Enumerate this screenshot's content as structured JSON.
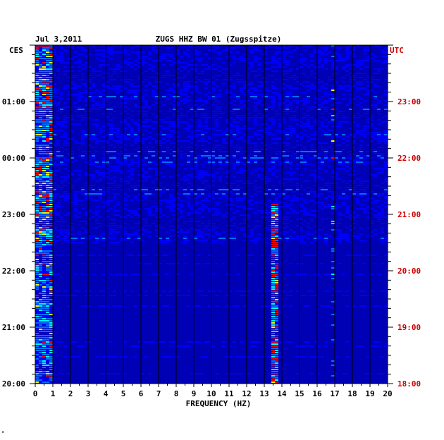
{
  "header": {
    "date": "Jul 3,2011",
    "station": "ZUGS HHZ BW 01 (Zugsspitze)"
  },
  "chart_data": {
    "type": "heatmap",
    "title": "ZUGS HHZ BW 01 (Zugsspitze)",
    "date": "Jul 3,2011",
    "xlabel": "FREQUENCY (HZ)",
    "xlim": [
      0,
      20
    ],
    "x_ticks": [
      "0",
      "1",
      "2",
      "3",
      "4",
      "5",
      "6",
      "7",
      "8",
      "9",
      "10",
      "11",
      "12",
      "13",
      "14",
      "15",
      "16",
      "17",
      "18",
      "19",
      "20"
    ],
    "left_axis": {
      "label": "CES",
      "ticks": [
        "01:00",
        "00:00",
        "23:00",
        "22:00",
        "21:00",
        "20:00"
      ],
      "tick_values_hours_from_bottom": [
        5,
        4,
        3,
        2,
        1,
        0
      ]
    },
    "right_axis": {
      "label": "UTC",
      "ticks": [
        "23:00",
        "22:00",
        "21:00",
        "20:00",
        "19:00",
        "18:00"
      ],
      "tick_values_hours_from_bottom": [
        5,
        4,
        3,
        2,
        1,
        0
      ]
    },
    "time_span_hours": 6,
    "colors": {
      "background": "#0000b4",
      "low": "#0000ff",
      "mid": "#00ffff",
      "high": "#ffff00",
      "peak": "#ff0000",
      "left_label_color": "#000000",
      "right_label_color": "#cc0000"
    },
    "features": {
      "low_frequency_energy_hz": [
        0,
        1
      ],
      "persistent_line_hz": 13.6,
      "persistent_line_hours_from_bottom": [
        0,
        3.2
      ],
      "secondary_line_hz": 16.9
    }
  },
  "footer": {
    "mark": "▴"
  }
}
